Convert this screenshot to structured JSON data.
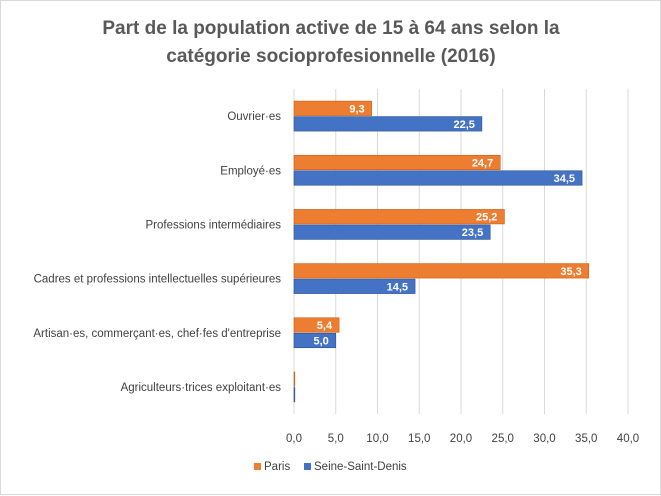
{
  "chart_data": {
    "type": "bar",
    "orientation": "horizontal",
    "title_line1": "Part de la population active de 15 à 64 ans selon la",
    "title_line2": "catégorie socioprofesionnelle (2016)",
    "categories": [
      "Ouvrier·es",
      "Employé·es",
      "Professions intermédiaires",
      "Cadres et professions intellectuelles supérieures",
      "Artisan·es, commerçant·es, chef·fes d'entreprise",
      "Agriculteurs·trices exploitant·es"
    ],
    "series": [
      {
        "name": "Paris",
        "color": "#ed7d31",
        "values": [
          9.3,
          24.7,
          25.2,
          35.3,
          5.4,
          0.0
        ],
        "labels": [
          "9,3",
          "24,7",
          "25,2",
          "35,3",
          "5,4",
          ""
        ]
      },
      {
        "name": "Seine-Saint-Denis",
        "color": "#4472c4",
        "values": [
          22.5,
          34.5,
          23.5,
          14.5,
          5.0,
          0.1
        ],
        "labels": [
          "22,5",
          "34,5",
          "23,5",
          "14,5",
          "5,0",
          ""
        ]
      }
    ],
    "xlim": [
      0,
      40
    ],
    "xticks": [
      0,
      5,
      10,
      15,
      20,
      25,
      30,
      35,
      40
    ],
    "xtick_labels": [
      "0,0",
      "5,0",
      "10,0",
      "15,0",
      "20,0",
      "25,0",
      "30,0",
      "35,0",
      "40,0"
    ],
    "gridline_color": "#d9d9d9",
    "legend_position": "bottom"
  }
}
